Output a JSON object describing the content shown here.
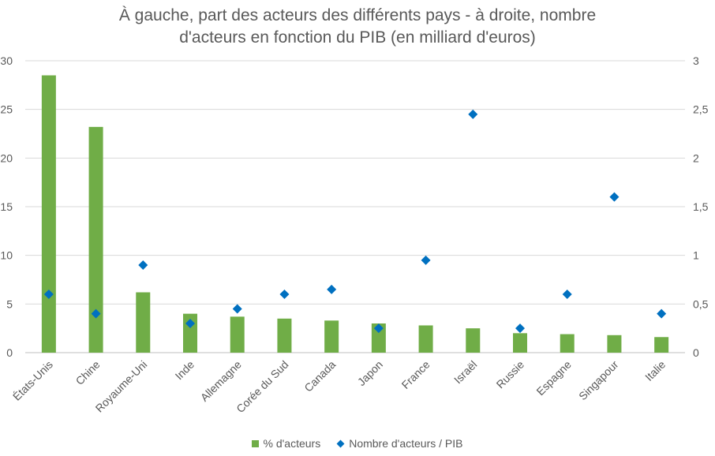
{
  "chart_data": {
    "type": "bar",
    "title_lines": [
      "À gauche, part des acteurs des différents pays - à droite, nombre",
      "d'acteurs en fonction du PIB (en milliard d'euros)"
    ],
    "categories": [
      "États-Unis",
      "Chine",
      "Royaume-Uni",
      "Inde",
      "Allemagne",
      "Corée du Sud",
      "Canada",
      "Japon",
      "France",
      "Israël",
      "Russie",
      "Espagne",
      "Singapour",
      "Italie"
    ],
    "series": [
      {
        "name": "% d'acteurs",
        "kind": "bar",
        "axis": "left",
        "color": "#70ad47",
        "values": [
          28.5,
          23.2,
          6.2,
          4.0,
          3.7,
          3.5,
          3.3,
          3.0,
          2.8,
          2.5,
          2.0,
          1.9,
          1.8,
          1.6
        ]
      },
      {
        "name": "Nombre d'acteurs / PIB",
        "kind": "scatter",
        "marker": "diamond",
        "axis": "right",
        "color": "#0070c0",
        "values": [
          0.6,
          0.4,
          0.9,
          0.3,
          0.45,
          0.6,
          0.65,
          0.25,
          0.95,
          2.45,
          0.25,
          0.6,
          1.6,
          0.4
        ]
      }
    ],
    "y_left": {
      "ylim": [
        0,
        30
      ],
      "ticks": [
        "0",
        "5",
        "10",
        "15",
        "20",
        "25",
        "30"
      ]
    },
    "y_right": {
      "ylim": [
        0,
        3
      ],
      "ticks": [
        "0",
        "0,5",
        "1",
        "1,5",
        "2",
        "2,5",
        "3"
      ]
    },
    "grid": true,
    "legend_position": "bottom"
  }
}
